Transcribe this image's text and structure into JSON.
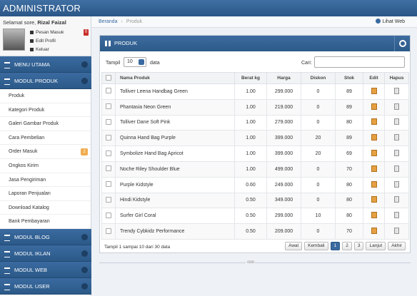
{
  "header": {
    "title": "ADMINISTRATOR"
  },
  "user": {
    "greeting": "Selamat sore,",
    "name": "Rizal Faizal",
    "links": [
      "Pesan Masuk",
      "Edit Profil",
      "Keluar"
    ],
    "message_badge": "0"
  },
  "sidebar": {
    "sections": [
      {
        "title": "MENU UTAMA"
      },
      {
        "title": "MODUL PRODUK",
        "items": [
          {
            "label": "Produk"
          },
          {
            "label": "Kategori Produk"
          },
          {
            "label": "Galeri Gambar Produk"
          },
          {
            "label": "Cara Pembelian"
          },
          {
            "label": "Order Masuk",
            "badge": "2"
          },
          {
            "label": "Ongkos Kirim"
          },
          {
            "label": "Jasa Pengiriman"
          },
          {
            "label": "Laporan Penjualan"
          },
          {
            "label": "Download Katalog"
          },
          {
            "label": "Bank Pembayaran"
          }
        ]
      },
      {
        "title": "MODUL BLOG"
      },
      {
        "title": "MODUL IKLAN"
      },
      {
        "title": "MODUL WEB"
      },
      {
        "title": "MODUL USER"
      }
    ]
  },
  "breadcrumb": {
    "items": [
      "Beranda",
      "Produk"
    ],
    "view_site": "Lihat Web"
  },
  "panel": {
    "title": "PRODUK",
    "show_label": "Tampil",
    "page_size": "10",
    "show_suffix": "data",
    "search_label": "Cari:",
    "table": {
      "columns": [
        "Nama Produk",
        "Berat kg",
        "Harga",
        "Diskon",
        "Stok",
        "Edit",
        "Hapus"
      ],
      "rows": [
        [
          "Tolliver Leena Handbag Green",
          "1.00",
          "299.000",
          "0",
          "89"
        ],
        [
          "Phantasia Neon Green",
          "1.00",
          "219.000",
          "0",
          "89"
        ],
        [
          "Tolliver Dane Soft Pink",
          "1.00",
          "279.000",
          "0",
          "80"
        ],
        [
          "Quinna Hand Bag Purple",
          "1.00",
          "399.000",
          "20",
          "89"
        ],
        [
          "Symbolize Hand Bag Apricot",
          "1.00",
          "399.000",
          "20",
          "69"
        ],
        [
          "Noche Riley Shoulder Blue",
          "1.00",
          "499.000",
          "0",
          "70"
        ],
        [
          "Purple Kidstyle",
          "0.60",
          "249.000",
          "0",
          "80"
        ],
        [
          "Hindi Kidstyle",
          "0.50",
          "349.000",
          "0",
          "80"
        ],
        [
          "Surfer Girl Coral",
          "0.50",
          "299.000",
          "10",
          "80"
        ],
        [
          "Trendy Cybkidz Performance",
          "0.50",
          "209.000",
          "0",
          "70"
        ]
      ]
    },
    "info": "Tampil 1 sampai 10 dari 30 data",
    "pagination": [
      "Awal",
      "Kembali",
      "1",
      "2",
      "3",
      "Lanjut",
      "Akhir"
    ],
    "current_page": "1"
  }
}
